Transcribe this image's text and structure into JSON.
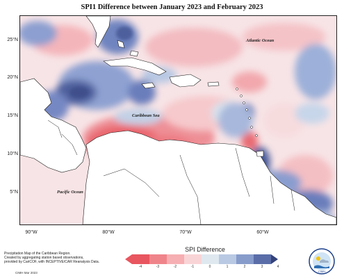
{
  "title": "SPI1 Difference between January 2023 and February 2023",
  "lat_labels": [
    "25°N",
    "20°N",
    "15°N",
    "10°N",
    "5°N"
  ],
  "lon_labels": [
    "90°W",
    "80°W",
    "70°W",
    "60°W"
  ],
  "ocean_labels": {
    "atlantic": "Atlantic Ocean",
    "caribbean": "Caribbean Sea",
    "pacific": "Pacific Ocean"
  },
  "credit": {
    "line1": "Precipitation Map of the Caribbean Region.",
    "line2": "Created by aggregating station based observations,",
    "line3": "provided by CariCOF, with INCEPTIVE/CAR Reanalysis Data.",
    "date": "CIMH Mar 2023"
  },
  "legend": {
    "title": "SPI Difference",
    "ticks": [
      "-4",
      "-3",
      "-2",
      "-1",
      "0",
      "1",
      "2",
      "3",
      "4"
    ],
    "colors": [
      "#e8565f",
      "#f0848b",
      "#f6afb3",
      "#f9d4d6",
      "#fbeaea",
      "#dfe8ef",
      "#b9c9e3",
      "#889ccb",
      "#5a6da8",
      "#34427a"
    ]
  },
  "logo": {
    "label": "CIMH"
  }
}
